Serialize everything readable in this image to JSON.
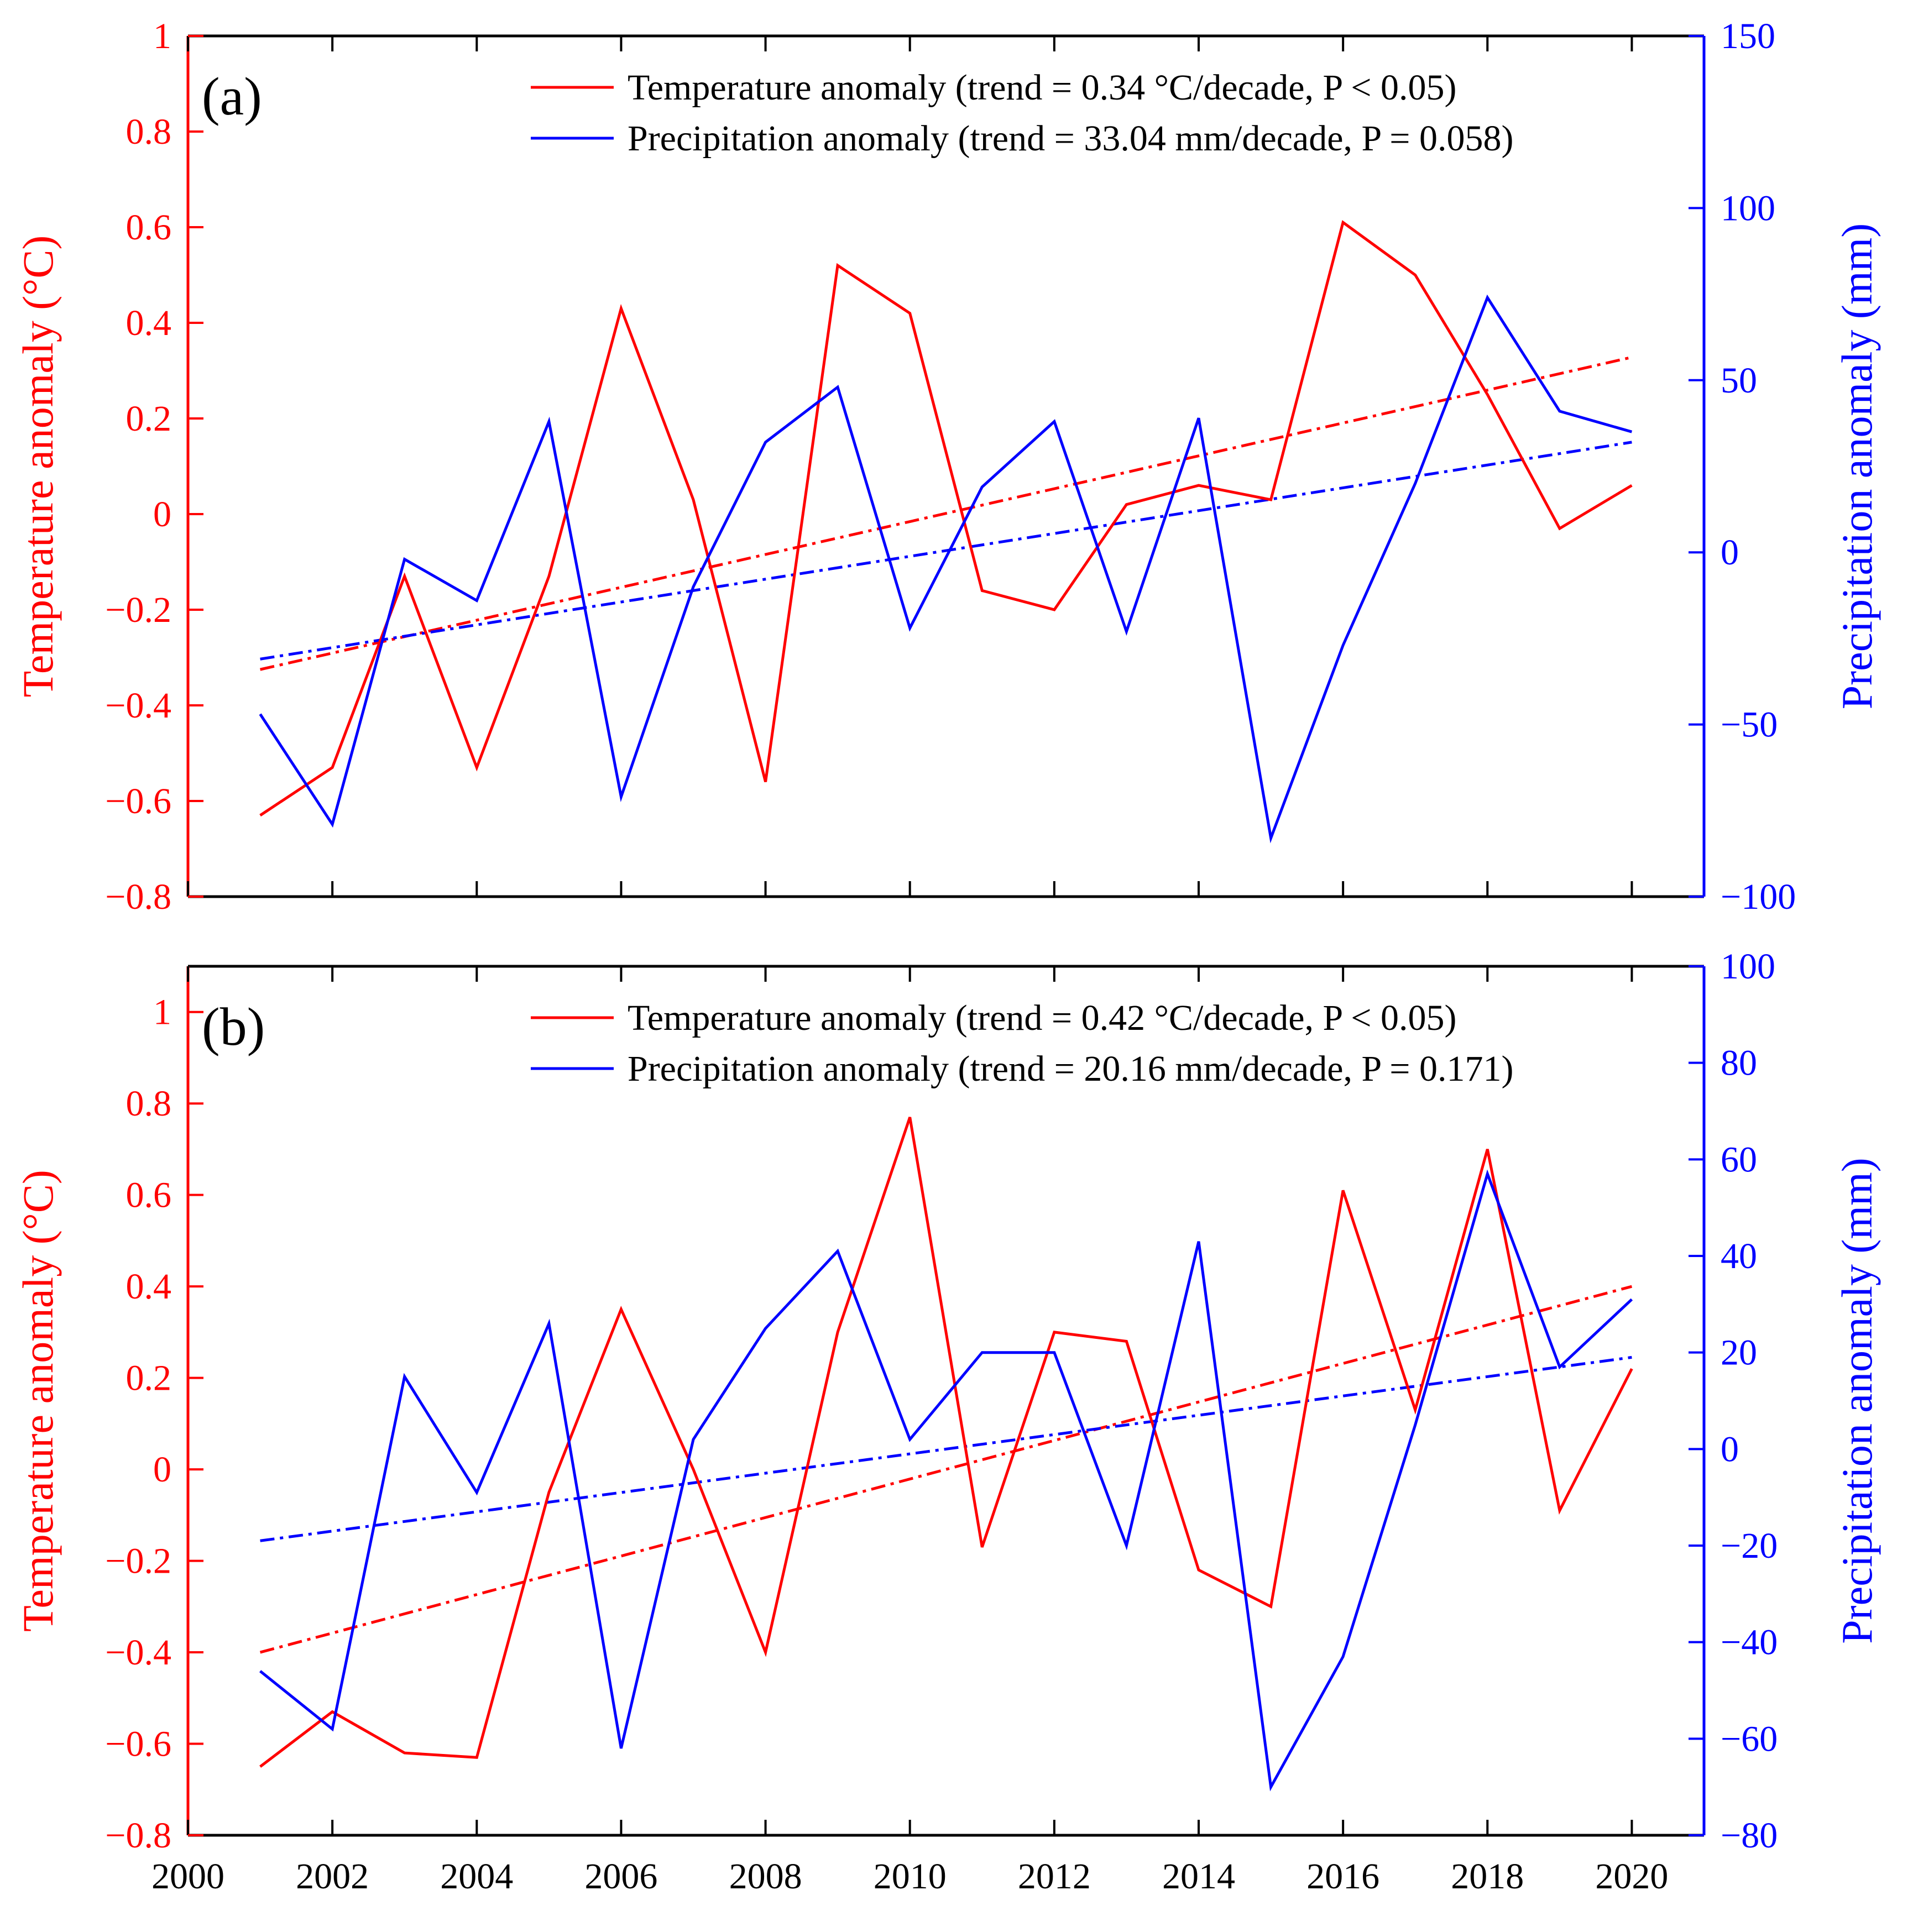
{
  "chart_data": [
    {
      "type": "line",
      "panel_label": "(a)",
      "x": [
        2001,
        2002,
        2003,
        2004,
        2005,
        2006,
        2007,
        2008,
        2009,
        2010,
        2011,
        2012,
        2013,
        2014,
        2015,
        2016,
        2017,
        2018,
        2019,
        2020
      ],
      "xlim": [
        2000,
        2021
      ],
      "xticks": [
        2000,
        2002,
        2004,
        2006,
        2008,
        2010,
        2012,
        2014,
        2016,
        2018,
        2020
      ],
      "show_x_tick_labels": false,
      "ylabel_left": "Temperature anomaly (°C)",
      "ylabel_right": "Precipitation anomaly (mm)",
      "ylim_left": [
        -0.8,
        1.0
      ],
      "ylim_right": [
        -100,
        150
      ],
      "yticks_left": [
        "-0.8",
        "-0.6",
        "-0.4",
        "-0.2",
        "0",
        "0.2",
        "0.4",
        "0.6",
        "0.8",
        "1"
      ],
      "yticks_right": [
        "-100",
        "-50",
        "0",
        "50",
        "100",
        "150"
      ],
      "colors": {
        "temperature": "#ff0000",
        "precipitation": "#0000ff"
      },
      "series": [
        {
          "name": "Temperature anomaly (trend = 0.34 °C/decade, P < 0.05)",
          "axis": "left",
          "color": "#ff0000",
          "values": [
            -0.63,
            -0.53,
            -0.13,
            -0.53,
            -0.13,
            0.43,
            0.03,
            -0.56,
            0.52,
            0.42,
            -0.16,
            -0.2,
            0.02,
            0.06,
            0.03,
            0.61,
            0.5,
            0.25,
            -0.03,
            0.06
          ],
          "trend": [
            -0.325,
            0.328
          ]
        },
        {
          "name": "Precipitation anomaly (trend = 33.04 mm/decade, P = 0.058)",
          "axis": "right",
          "color": "#0000ff",
          "values": [
            -47,
            -79,
            -2,
            -14,
            38,
            -71,
            -10,
            32,
            48,
            -22,
            19,
            38,
            -23,
            39,
            -83,
            -27,
            20,
            74,
            41,
            35
          ],
          "trend": [
            -31,
            32
          ]
        }
      ]
    },
    {
      "type": "line",
      "panel_label": "(b)",
      "x": [
        2001,
        2002,
        2003,
        2004,
        2005,
        2006,
        2007,
        2008,
        2009,
        2010,
        2011,
        2012,
        2013,
        2014,
        2015,
        2016,
        2017,
        2018,
        2019,
        2020
      ],
      "xlim": [
        2000,
        2021
      ],
      "xticks": [
        2000,
        2002,
        2004,
        2006,
        2008,
        2010,
        2012,
        2014,
        2016,
        2018,
        2020
      ],
      "show_x_tick_labels": true,
      "ylabel_left": "Temperature anomaly (°C)",
      "ylabel_right": "Precipitation anomaly (mm)",
      "ylim_left": [
        -0.8,
        1.1
      ],
      "ylim_right": [
        -80,
        100
      ],
      "yticks_left": [
        "-0.8",
        "-0.6",
        "-0.4",
        "-0.2",
        "0",
        "0.2",
        "0.4",
        "0.6",
        "0.8",
        "1"
      ],
      "yticks_right": [
        "-80",
        "-60",
        "-40",
        "-20",
        "0",
        "20",
        "40",
        "60",
        "80",
        "100"
      ],
      "colors": {
        "temperature": "#ff0000",
        "precipitation": "#0000ff"
      },
      "series": [
        {
          "name": "Temperature anomaly (trend = 0.42 °C/decade, P < 0.05)",
          "axis": "left",
          "color": "#ff0000",
          "values": [
            -0.65,
            -0.53,
            -0.62,
            -0.63,
            -0.05,
            0.35,
            0.0,
            -0.4,
            0.3,
            0.77,
            -0.17,
            0.3,
            0.28,
            -0.22,
            -0.3,
            0.61,
            0.13,
            0.7,
            -0.09,
            0.22
          ],
          "trend": [
            -0.4,
            0.4
          ]
        },
        {
          "name": "Precipitation anomaly (trend = 20.16 mm/decade, P = 0.171)",
          "axis": "right",
          "color": "#0000ff",
          "values": [
            -46,
            -58,
            15,
            -9,
            26,
            -62,
            2,
            25,
            41,
            2,
            20,
            20,
            -20,
            43,
            -70,
            -43,
            5,
            57,
            17,
            31
          ],
          "trend": [
            -19,
            19
          ]
        }
      ]
    }
  ]
}
